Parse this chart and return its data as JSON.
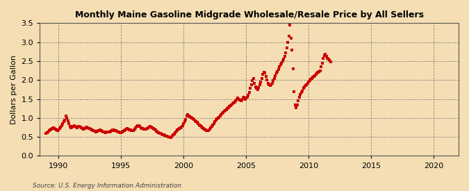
{
  "title": "Monthly Maine Gasoline Midgrade Wholesale/Resale Price by All Sellers",
  "ylabel": "Dollars per Gallon",
  "source": "Source: U.S. Energy Information Administration",
  "background_color": "#f5deb3",
  "line_color": "#cc0000",
  "xlim": [
    1988.5,
    2022
  ],
  "ylim": [
    0.0,
    3.5
  ],
  "yticks": [
    0.0,
    0.5,
    1.0,
    1.5,
    2.0,
    2.5,
    3.0,
    3.5
  ],
  "xticks": [
    1990,
    1995,
    2000,
    2005,
    2010,
    2015,
    2020
  ],
  "data": [
    [
      1989.0,
      0.6
    ],
    [
      1989.08,
      0.62
    ],
    [
      1989.17,
      0.64
    ],
    [
      1989.25,
      0.66
    ],
    [
      1989.33,
      0.68
    ],
    [
      1989.42,
      0.7
    ],
    [
      1989.5,
      0.72
    ],
    [
      1989.58,
      0.74
    ],
    [
      1989.67,
      0.72
    ],
    [
      1989.75,
      0.7
    ],
    [
      1989.83,
      0.68
    ],
    [
      1989.92,
      0.66
    ],
    [
      1990.0,
      0.68
    ],
    [
      1990.08,
      0.72
    ],
    [
      1990.17,
      0.76
    ],
    [
      1990.25,
      0.8
    ],
    [
      1990.33,
      0.85
    ],
    [
      1990.42,
      0.9
    ],
    [
      1990.5,
      0.95
    ],
    [
      1990.58,
      1.05
    ],
    [
      1990.67,
      1.0
    ],
    [
      1990.75,
      0.92
    ],
    [
      1990.83,
      0.85
    ],
    [
      1990.92,
      0.78
    ],
    [
      1991.0,
      0.74
    ],
    [
      1991.08,
      0.76
    ],
    [
      1991.17,
      0.78
    ],
    [
      1991.25,
      0.8
    ],
    [
      1991.33,
      0.78
    ],
    [
      1991.42,
      0.76
    ],
    [
      1991.5,
      0.75
    ],
    [
      1991.58,
      0.77
    ],
    [
      1991.67,
      0.78
    ],
    [
      1991.75,
      0.76
    ],
    [
      1991.83,
      0.74
    ],
    [
      1991.92,
      0.72
    ],
    [
      1992.0,
      0.7
    ],
    [
      1992.08,
      0.72
    ],
    [
      1992.17,
      0.74
    ],
    [
      1992.25,
      0.76
    ],
    [
      1992.33,
      0.75
    ],
    [
      1992.42,
      0.73
    ],
    [
      1992.5,
      0.72
    ],
    [
      1992.58,
      0.7
    ],
    [
      1992.67,
      0.68
    ],
    [
      1992.75,
      0.67
    ],
    [
      1992.83,
      0.66
    ],
    [
      1992.92,
      0.65
    ],
    [
      1993.0,
      0.64
    ],
    [
      1993.08,
      0.65
    ],
    [
      1993.17,
      0.66
    ],
    [
      1993.25,
      0.67
    ],
    [
      1993.33,
      0.68
    ],
    [
      1993.42,
      0.67
    ],
    [
      1993.5,
      0.65
    ],
    [
      1993.58,
      0.64
    ],
    [
      1993.67,
      0.63
    ],
    [
      1993.75,
      0.62
    ],
    [
      1993.83,
      0.63
    ],
    [
      1993.92,
      0.64
    ],
    [
      1994.0,
      0.63
    ],
    [
      1994.08,
      0.64
    ],
    [
      1994.17,
      0.65
    ],
    [
      1994.25,
      0.67
    ],
    [
      1994.33,
      0.68
    ],
    [
      1994.42,
      0.68
    ],
    [
      1994.5,
      0.67
    ],
    [
      1994.58,
      0.66
    ],
    [
      1994.67,
      0.65
    ],
    [
      1994.75,
      0.64
    ],
    [
      1994.83,
      0.63
    ],
    [
      1994.92,
      0.62
    ],
    [
      1995.0,
      0.62
    ],
    [
      1995.08,
      0.63
    ],
    [
      1995.17,
      0.65
    ],
    [
      1995.25,
      0.67
    ],
    [
      1995.33,
      0.68
    ],
    [
      1995.42,
      0.7
    ],
    [
      1995.5,
      0.72
    ],
    [
      1995.58,
      0.71
    ],
    [
      1995.67,
      0.69
    ],
    [
      1995.75,
      0.68
    ],
    [
      1995.83,
      0.67
    ],
    [
      1995.92,
      0.66
    ],
    [
      1996.0,
      0.67
    ],
    [
      1996.08,
      0.7
    ],
    [
      1996.17,
      0.74
    ],
    [
      1996.25,
      0.78
    ],
    [
      1996.33,
      0.8
    ],
    [
      1996.42,
      0.79
    ],
    [
      1996.5,
      0.77
    ],
    [
      1996.58,
      0.75
    ],
    [
      1996.67,
      0.73
    ],
    [
      1996.75,
      0.72
    ],
    [
      1996.83,
      0.71
    ],
    [
      1996.92,
      0.7
    ],
    [
      1997.0,
      0.71
    ],
    [
      1997.08,
      0.73
    ],
    [
      1997.17,
      0.75
    ],
    [
      1997.25,
      0.76
    ],
    [
      1997.33,
      0.77
    ],
    [
      1997.42,
      0.76
    ],
    [
      1997.5,
      0.75
    ],
    [
      1997.58,
      0.73
    ],
    [
      1997.67,
      0.7
    ],
    [
      1997.75,
      0.68
    ],
    [
      1997.83,
      0.65
    ],
    [
      1997.92,
      0.63
    ],
    [
      1998.0,
      0.62
    ],
    [
      1998.08,
      0.6
    ],
    [
      1998.17,
      0.59
    ],
    [
      1998.25,
      0.57
    ],
    [
      1998.33,
      0.56
    ],
    [
      1998.42,
      0.55
    ],
    [
      1998.5,
      0.54
    ],
    [
      1998.58,
      0.53
    ],
    [
      1998.67,
      0.52
    ],
    [
      1998.75,
      0.51
    ],
    [
      1998.83,
      0.5
    ],
    [
      1998.92,
      0.48
    ],
    [
      1999.0,
      0.49
    ],
    [
      1999.08,
      0.52
    ],
    [
      1999.17,
      0.55
    ],
    [
      1999.25,
      0.58
    ],
    [
      1999.33,
      0.62
    ],
    [
      1999.42,
      0.65
    ],
    [
      1999.5,
      0.68
    ],
    [
      1999.58,
      0.7
    ],
    [
      1999.67,
      0.72
    ],
    [
      1999.75,
      0.74
    ],
    [
      1999.83,
      0.76
    ],
    [
      1999.92,
      0.8
    ],
    [
      2000.0,
      0.85
    ],
    [
      2000.08,
      0.9
    ],
    [
      2000.17,
      0.96
    ],
    [
      2000.25,
      1.05
    ],
    [
      2000.33,
      1.08
    ],
    [
      2000.42,
      1.06
    ],
    [
      2000.5,
      1.04
    ],
    [
      2000.58,
      1.02
    ],
    [
      2000.67,
      1.0
    ],
    [
      2000.75,
      0.98
    ],
    [
      2000.83,
      0.96
    ],
    [
      2000.92,
      0.92
    ],
    [
      2001.0,
      0.9
    ],
    [
      2001.08,
      0.88
    ],
    [
      2001.17,
      0.85
    ],
    [
      2001.25,
      0.82
    ],
    [
      2001.33,
      0.8
    ],
    [
      2001.42,
      0.78
    ],
    [
      2001.5,
      0.75
    ],
    [
      2001.58,
      0.72
    ],
    [
      2001.67,
      0.7
    ],
    [
      2001.75,
      0.68
    ],
    [
      2001.83,
      0.67
    ],
    [
      2001.92,
      0.66
    ],
    [
      2002.0,
      0.67
    ],
    [
      2002.08,
      0.7
    ],
    [
      2002.17,
      0.74
    ],
    [
      2002.25,
      0.78
    ],
    [
      2002.33,
      0.82
    ],
    [
      2002.42,
      0.86
    ],
    [
      2002.5,
      0.9
    ],
    [
      2002.58,
      0.94
    ],
    [
      2002.67,
      0.98
    ],
    [
      2002.75,
      1.0
    ],
    [
      2002.83,
      1.02
    ],
    [
      2002.92,
      1.05
    ],
    [
      2003.0,
      1.08
    ],
    [
      2003.08,
      1.12
    ],
    [
      2003.17,
      1.15
    ],
    [
      2003.25,
      1.18
    ],
    [
      2003.33,
      1.2
    ],
    [
      2003.42,
      1.22
    ],
    [
      2003.5,
      1.25
    ],
    [
      2003.58,
      1.28
    ],
    [
      2003.67,
      1.3
    ],
    [
      2003.75,
      1.32
    ],
    [
      2003.83,
      1.35
    ],
    [
      2003.92,
      1.38
    ],
    [
      2004.0,
      1.4
    ],
    [
      2004.08,
      1.42
    ],
    [
      2004.17,
      1.45
    ],
    [
      2004.25,
      1.5
    ],
    [
      2004.33,
      1.52
    ],
    [
      2004.42,
      1.5
    ],
    [
      2004.5,
      1.48
    ],
    [
      2004.58,
      1.46
    ],
    [
      2004.67,
      1.48
    ],
    [
      2004.75,
      1.52
    ],
    [
      2004.83,
      1.55
    ],
    [
      2004.92,
      1.5
    ],
    [
      2005.0,
      1.52
    ],
    [
      2005.08,
      1.55
    ],
    [
      2005.17,
      1.6
    ],
    [
      2005.25,
      1.68
    ],
    [
      2005.33,
      1.78
    ],
    [
      2005.42,
      1.88
    ],
    [
      2005.5,
      1.98
    ],
    [
      2005.58,
      2.05
    ],
    [
      2005.67,
      1.92
    ],
    [
      2005.75,
      1.82
    ],
    [
      2005.83,
      1.78
    ],
    [
      2005.92,
      1.75
    ],
    [
      2006.0,
      1.8
    ],
    [
      2006.08,
      1.88
    ],
    [
      2006.17,
      1.95
    ],
    [
      2006.25,
      2.05
    ],
    [
      2006.33,
      2.15
    ],
    [
      2006.42,
      2.2
    ],
    [
      2006.5,
      2.18
    ],
    [
      2006.58,
      2.1
    ],
    [
      2006.67,
      2.0
    ],
    [
      2006.75,
      1.92
    ],
    [
      2006.83,
      1.88
    ],
    [
      2006.92,
      1.85
    ],
    [
      2007.0,
      1.88
    ],
    [
      2007.08,
      1.92
    ],
    [
      2007.17,
      1.98
    ],
    [
      2007.25,
      2.05
    ],
    [
      2007.33,
      2.12
    ],
    [
      2007.42,
      2.18
    ],
    [
      2007.5,
      2.22
    ],
    [
      2007.58,
      2.28
    ],
    [
      2007.67,
      2.35
    ],
    [
      2007.75,
      2.4
    ],
    [
      2007.83,
      2.45
    ],
    [
      2007.92,
      2.5
    ],
    [
      2008.0,
      2.55
    ],
    [
      2008.08,
      2.62
    ],
    [
      2008.17,
      2.72
    ],
    [
      2008.25,
      2.85
    ],
    [
      2008.33,
      3.0
    ],
    [
      2008.42,
      3.15
    ],
    [
      2008.5,
      3.45
    ],
    [
      2008.58,
      3.1
    ],
    [
      2008.67,
      2.8
    ],
    [
      2008.75,
      2.3
    ],
    [
      2008.83,
      1.7
    ],
    [
      2008.92,
      1.35
    ],
    [
      2009.0,
      1.28
    ],
    [
      2009.08,
      1.35
    ],
    [
      2009.17,
      1.45
    ],
    [
      2009.25,
      1.55
    ],
    [
      2009.33,
      1.62
    ],
    [
      2009.42,
      1.68
    ],
    [
      2009.5,
      1.72
    ],
    [
      2009.58,
      1.78
    ],
    [
      2009.67,
      1.82
    ],
    [
      2009.75,
      1.85
    ],
    [
      2009.83,
      1.88
    ],
    [
      2009.92,
      1.92
    ],
    [
      2010.0,
      1.95
    ],
    [
      2010.08,
      1.98
    ],
    [
      2010.17,
      2.02
    ],
    [
      2010.25,
      2.05
    ],
    [
      2010.33,
      2.08
    ],
    [
      2010.42,
      2.1
    ],
    [
      2010.5,
      2.12
    ],
    [
      2010.58,
      2.15
    ],
    [
      2010.67,
      2.18
    ],
    [
      2010.75,
      2.2
    ],
    [
      2010.83,
      2.22
    ],
    [
      2010.92,
      2.25
    ],
    [
      2011.0,
      2.35
    ],
    [
      2011.08,
      2.45
    ],
    [
      2011.17,
      2.58
    ],
    [
      2011.25,
      2.65
    ],
    [
      2011.33,
      2.68
    ],
    [
      2011.42,
      2.62
    ],
    [
      2011.5,
      2.58
    ],
    [
      2011.58,
      2.55
    ],
    [
      2011.67,
      2.52
    ],
    [
      2011.75,
      2.48
    ]
  ]
}
